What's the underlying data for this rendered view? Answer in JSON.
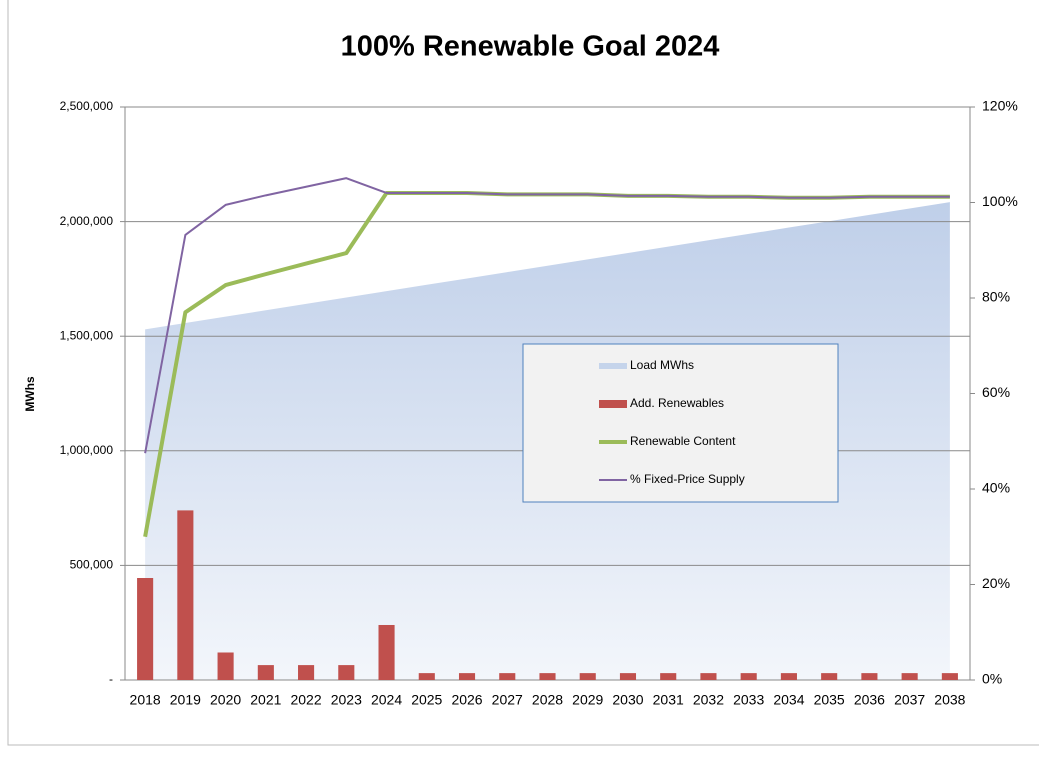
{
  "chart_data": {
    "type": "combo",
    "title": "100% Renewable Goal 2024",
    "y_label": "MWhs",
    "categories": [
      "2018",
      "2019",
      "2020",
      "2021",
      "2022",
      "2023",
      "2024",
      "2025",
      "2026",
      "2027",
      "2028",
      "2029",
      "2030",
      "2031",
      "2032",
      "2033",
      "2034",
      "2035",
      "2036",
      "2037",
      "2038"
    ],
    "ylim": [
      0,
      2500000
    ],
    "yticks": [
      {
        "value": 0,
        "label": "-"
      },
      {
        "value": 500000,
        "label": "500,000"
      },
      {
        "value": 1000000,
        "label": "1,000,000"
      },
      {
        "value": 1500000,
        "label": "1,500,000"
      },
      {
        "value": 2000000,
        "label": "2,000,000"
      },
      {
        "value": 2500000,
        "label": "2,500,000"
      }
    ],
    "y2lim": [
      0,
      120
    ],
    "y2ticks": [
      {
        "value": 0,
        "label": "0%"
      },
      {
        "value": 20,
        "label": "20%"
      },
      {
        "value": 40,
        "label": "40%"
      },
      {
        "value": 60,
        "label": "60%"
      },
      {
        "value": 80,
        "label": "80%"
      },
      {
        "value": 100,
        "label": "100%"
      },
      {
        "value": 120,
        "label": "120%"
      }
    ],
    "grid": true,
    "series": [
      {
        "name": "Load MWhs",
        "type": "area",
        "color": "#c5d4eb",
        "values": [
          1530000,
          1557750,
          1585500,
          1613250,
          1641000,
          1668750,
          1696500,
          1724250,
          1752000,
          1779750,
          1807500,
          1835250,
          1863000,
          1890750,
          1918500,
          1946250,
          1974000,
          2001750,
          2029500,
          2057250,
          2085000
        ]
      },
      {
        "name": "Add. Renewables",
        "type": "bar",
        "color": "#c0504d",
        "values": [
          445000,
          740000,
          120000,
          65000,
          65000,
          65000,
          240000,
          30000,
          30000,
          30000,
          30000,
          30000,
          30000,
          30000,
          30000,
          30000,
          30000,
          30000,
          30000,
          30000,
          30000
        ]
      },
      {
        "name": "Renewable Content",
        "type": "line",
        "axis": "y2",
        "color": "#9bbb59",
        "width": 4,
        "values": [
          30,
          77,
          82.7,
          85,
          87.2,
          89.4,
          102,
          102,
          102,
          101.7,
          101.7,
          101.7,
          101.4,
          101.4,
          101.2,
          101.2,
          101,
          101,
          101.2,
          101.2,
          101.2
        ]
      },
      {
        "name": "% Fixed-Price Supply",
        "type": "line",
        "axis": "y2",
        "color": "#8064a2",
        "width": 2,
        "values": [
          47.5,
          93.2,
          99.5,
          101.5,
          103.3,
          105.1,
          102,
          102,
          102,
          101.7,
          101.7,
          101.7,
          101.4,
          101.4,
          101.2,
          101.2,
          101,
          101,
          101.2,
          101.2,
          101.2
        ]
      }
    ]
  }
}
